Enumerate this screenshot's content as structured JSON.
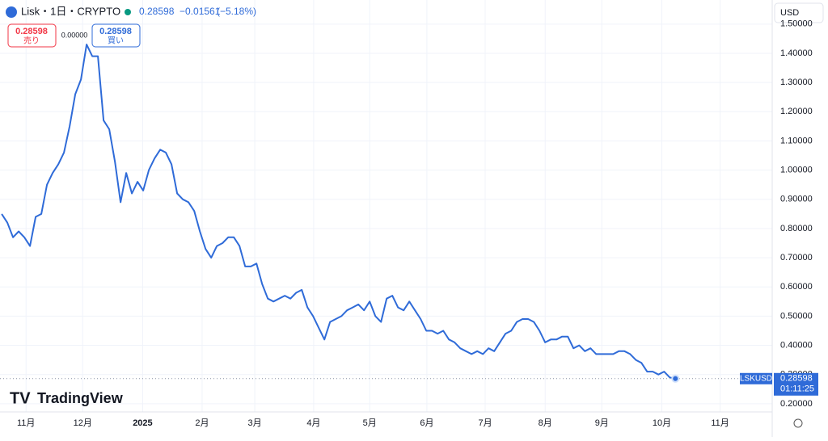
{
  "chart_data": {
    "type": "line",
    "series": [
      {
        "name": "LSKUSD",
        "color": "#2f6bd8",
        "values": [
          0.85,
          0.82,
          0.77,
          0.79,
          0.77,
          0.74,
          0.84,
          0.85,
          0.95,
          0.99,
          1.02,
          1.06,
          1.15,
          1.26,
          1.31,
          1.43,
          1.39,
          1.39,
          1.17,
          1.14,
          1.03,
          0.89,
          0.99,
          0.92,
          0.96,
          0.93,
          1.0,
          1.04,
          1.07,
          1.06,
          1.02,
          0.92,
          0.9,
          0.89,
          0.86,
          0.79,
          0.73,
          0.7,
          0.74,
          0.75,
          0.77,
          0.77,
          0.74,
          0.67,
          0.67,
          0.68,
          0.61,
          0.56,
          0.55,
          0.56,
          0.57,
          0.56,
          0.58,
          0.59,
          0.53,
          0.5,
          0.46,
          0.42,
          0.48,
          0.49,
          0.5,
          0.52,
          0.53,
          0.54,
          0.52,
          0.55,
          0.5,
          0.48,
          0.56,
          0.57,
          0.53,
          0.52,
          0.55,
          0.52,
          0.49,
          0.45,
          0.45,
          0.44,
          0.45,
          0.42,
          0.41,
          0.39,
          0.38,
          0.37,
          0.38,
          0.37,
          0.39,
          0.38,
          0.41,
          0.44,
          0.45,
          0.48,
          0.49,
          0.49,
          0.48,
          0.45,
          0.41,
          0.42,
          0.42,
          0.43,
          0.43,
          0.39,
          0.4,
          0.38,
          0.39,
          0.37,
          0.37,
          0.37,
          0.37,
          0.38,
          0.38,
          0.37,
          0.35,
          0.34,
          0.31,
          0.31,
          0.3,
          0.31,
          0.29,
          0.28598
        ]
      }
    ],
    "xlim": [
      -0.3,
      136.1
    ],
    "xticks": [
      {
        "value": 4.3,
        "label": "11月"
      },
      {
        "value": 14.3,
        "label": "12月"
      },
      {
        "value": 24.9,
        "label": "2025"
      },
      {
        "value": 35.4,
        "label": "2月"
      },
      {
        "value": 44.7,
        "label": "3月"
      },
      {
        "value": 55.1,
        "label": "4月"
      },
      {
        "value": 65,
        "label": "5月"
      },
      {
        "value": 75.1,
        "label": "6月"
      },
      {
        "value": 85.4,
        "label": "7月"
      },
      {
        "value": 96,
        "label": "8月"
      },
      {
        "value": 106,
        "label": "9月"
      },
      {
        "value": 116.6,
        "label": "10月"
      },
      {
        "value": 126.9,
        "label": "11月"
      }
    ],
    "ylim": [
      0.172,
      1.5825
    ],
    "yticks": [
      {
        "value": 0.2,
        "label": "0.20000"
      },
      {
        "value": 0.3,
        "label": "0.30000"
      },
      {
        "value": 0.4,
        "label": "0.40000"
      },
      {
        "value": 0.5,
        "label": "0.50000"
      },
      {
        "value": 0.6,
        "label": "0.60000"
      },
      {
        "value": 0.7,
        "label": "0.70000"
      },
      {
        "value": 0.8,
        "label": "0.80000"
      },
      {
        "value": 0.9,
        "label": "0.90000"
      },
      {
        "value": 1.0,
        "label": "1.00000"
      },
      {
        "value": 1.1,
        "label": "1.10000"
      },
      {
        "value": 1.2,
        "label": "1.20000"
      },
      {
        "value": 1.3,
        "label": "1.30000"
      },
      {
        "value": 1.4,
        "label": "1.40000"
      },
      {
        "value": 1.5,
        "label": "1.50000"
      }
    ],
    "grid": true
  },
  "ui": {
    "symbol": "Lisk・1日・CRYPTO",
    "last": "0.28598",
    "change": "−0.01561",
    "change_pct": "(−5.18%)",
    "sell_price": "0.28598",
    "sell": "売り",
    "spread": "0.00000",
    "buy_price": "0.28598",
    "buy": "買い",
    "currency": "USD",
    "ticker": "LSKUSD",
    "price_tag": "0.28598",
    "countdown": "01:11:25",
    "brand": "TradingView"
  }
}
